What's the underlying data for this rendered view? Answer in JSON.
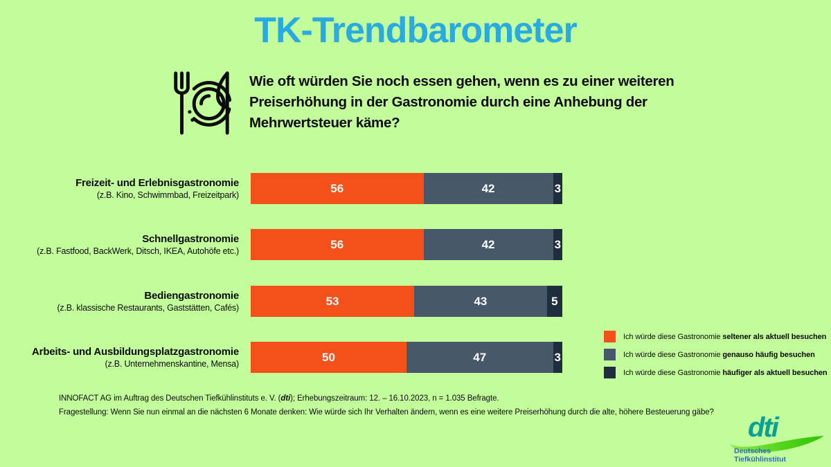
{
  "title": "TK-Trendbarometer",
  "question": {
    "line1": "Wie oft würden Sie noch essen gehen, wenn es zu einer weiteren",
    "line2": "Preiserhöhung in der Gastronomie durch eine Anhebung der",
    "line3": "Mehrwertsteuer käme?"
  },
  "colors": {
    "background": "#C3FD9B",
    "title": "#29ABE2",
    "bar_seltener": "#F4501A",
    "bar_genauso": "#46586A",
    "bar_haeufiger": "#1F2E3C",
    "logo_teal": "#0AA095",
    "logo_blue": "#2B6CB8",
    "logo_green": "#3EC81E"
  },
  "chart_data": {
    "type": "bar",
    "orientation": "horizontal",
    "stacked": true,
    "unit": "percent",
    "categories": [
      {
        "label": "Freizeit- und Erlebnisgastronomie",
        "sublabel": "(z.B. Kino, Schwimmbad, Freizeitpark)"
      },
      {
        "label": "Schnellgastronomie",
        "sublabel": "(z.B. Fastfood, BackWerk, Ditsch, IKEA, Autohöfe etc.)"
      },
      {
        "label": "Bediengastronomie",
        "sublabel": "(z.B. klassische Restaurants, Gaststätten, Cafés)"
      },
      {
        "label": "Arbeits- und Ausbildungsplatzgastronomie",
        "sublabel": "(z.B. Unternehmenskantine, Mensa)"
      }
    ],
    "series": [
      {
        "name": "Ich würde diese Gastronomie seltener als aktuell besuchen",
        "color": "#F4501A",
        "values": [
          56,
          56,
          53,
          50
        ]
      },
      {
        "name": "Ich würde diese Gastronomie genauso häufig besuchen",
        "color": "#46586A",
        "values": [
          42,
          42,
          43,
          47
        ]
      },
      {
        "name": "Ich würde diese Gastronomie häufiger als aktuell besuchen",
        "color": "#1F2E3C",
        "values": [
          3,
          3,
          5,
          3
        ]
      }
    ],
    "title": "Wie oft würden Sie noch essen gehen, wenn es zu einer weiteren Preiserhöhung in der Gastronomie durch eine Anhebung der Mehrwertsteuer käme?",
    "legend_position": "right-bottom",
    "grid": false
  },
  "legend": [
    {
      "prefix": "Ich würde diese Gastronomie ",
      "bold": "seltener als aktuell besuchen"
    },
    {
      "prefix": "Ich würde diese Gastronomie ",
      "bold": "genauso häufig besuchen"
    },
    {
      "prefix": "Ich würde diese Gastronomie ",
      "bold": "häufiger als aktuell besuchen"
    }
  ],
  "footer": {
    "line1_pre": "INNOFACT AG im Auftrag des Deutschen Tiefkühlinstituts e. V. (",
    "line1_dti": "dti",
    "line1_post": "); Erhebungszeitraum: 12. – 16.10.2023, n = 1.035 Befragte.",
    "line2": "Fragestellung: Wenn Sie nun einmal an die nächsten 6 Monate denken: Wie würde sich Ihr Verhalten ändern, wenn es eine weitere Preiserhöhung durch die alte, höhere Besteuerung gäbe?"
  },
  "logo": {
    "word": "dti",
    "sub_line1": "Deutsches",
    "sub_line2": "Tiefkühlinstitut"
  }
}
